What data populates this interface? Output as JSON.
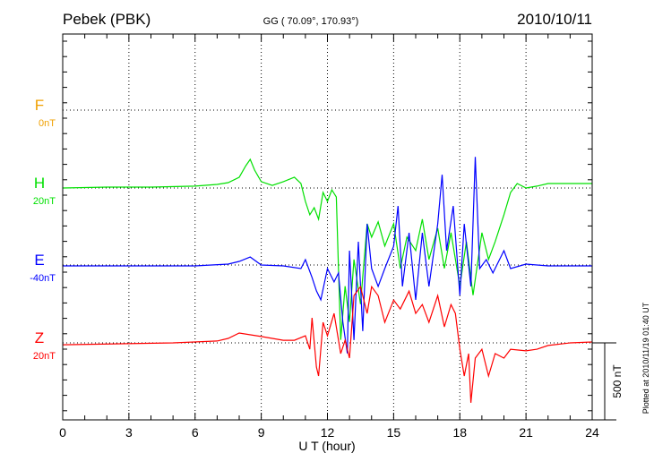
{
  "header": {
    "station": "Pebek (PBK)",
    "coords": "GG ( 70.09°, 170.93°)",
    "date": "2010/10/11"
  },
  "footer_note": "Plotted at 2010/11/19 01:40 UT",
  "chart_data": {
    "type": "line",
    "xlabel": "U T (hour)",
    "xlim": [
      0,
      24
    ],
    "xticks": [
      "0",
      "3",
      "6",
      "9",
      "12",
      "15",
      "18",
      "21",
      "24"
    ],
    "scale_bar": {
      "label": "500 nT",
      "value": 500
    },
    "grid": true,
    "series": [
      {
        "name": "F",
        "offset_label": "0nT",
        "color": "#f0a000",
        "points": []
      },
      {
        "name": "H",
        "offset_label": "20nT",
        "color": "#00e000",
        "points": [
          [
            0,
            0
          ],
          [
            2,
            6
          ],
          [
            4,
            6
          ],
          [
            6,
            12
          ],
          [
            7,
            23
          ],
          [
            7.5,
            35
          ],
          [
            8,
            70
          ],
          [
            8.3,
            145
          ],
          [
            8.5,
            186
          ],
          [
            8.7,
            116
          ],
          [
            9,
            41
          ],
          [
            9.5,
            17
          ],
          [
            10,
            41
          ],
          [
            10.5,
            70
          ],
          [
            10.8,
            29
          ],
          [
            11,
            -87
          ],
          [
            11.2,
            -174
          ],
          [
            11.4,
            -128
          ],
          [
            11.6,
            -203
          ],
          [
            11.8,
            -29
          ],
          [
            12,
            -87
          ],
          [
            12.2,
            -12
          ],
          [
            12.4,
            -58
          ],
          [
            12.5,
            -522
          ],
          [
            12.6,
            -986
          ],
          [
            12.8,
            -638
          ],
          [
            13,
            -870
          ],
          [
            13.2,
            -464
          ],
          [
            13.5,
            -754
          ],
          [
            13.8,
            -232
          ],
          [
            14,
            -319
          ],
          [
            14.3,
            -220
          ],
          [
            14.6,
            -377
          ],
          [
            15,
            -232
          ],
          [
            15.3,
            -522
          ],
          [
            15.6,
            -319
          ],
          [
            16,
            -406
          ],
          [
            16.3,
            -203
          ],
          [
            16.6,
            -464
          ],
          [
            17,
            -261
          ],
          [
            17.3,
            -522
          ],
          [
            17.6,
            -290
          ],
          [
            18,
            -638
          ],
          [
            18.3,
            -348
          ],
          [
            18.6,
            -696
          ],
          [
            19,
            -290
          ],
          [
            19.3,
            -464
          ],
          [
            19.6,
            -348
          ],
          [
            20,
            -174
          ],
          [
            20.3,
            -29
          ],
          [
            20.6,
            29
          ],
          [
            21,
            0
          ],
          [
            21.5,
            12
          ],
          [
            22,
            29
          ],
          [
            23,
            29
          ],
          [
            24,
            29
          ]
        ]
      },
      {
        "name": "E",
        "offset_label": "-40nT",
        "color": "#0000ff",
        "points": [
          [
            0,
            -6
          ],
          [
            6,
            -6
          ],
          [
            7.5,
            6
          ],
          [
            8,
            23
          ],
          [
            8.5,
            52
          ],
          [
            9,
            0
          ],
          [
            10,
            -6
          ],
          [
            10.8,
            -23
          ],
          [
            11,
            35
          ],
          [
            11.3,
            -81
          ],
          [
            11.5,
            -168
          ],
          [
            11.7,
            -226
          ],
          [
            12,
            -23
          ],
          [
            12.3,
            -110
          ],
          [
            12.5,
            -52
          ],
          [
            12.7,
            -371
          ],
          [
            12.9,
            -574
          ],
          [
            13,
            93
          ],
          [
            13.2,
            -487
          ],
          [
            13.4,
            151
          ],
          [
            13.6,
            -429
          ],
          [
            13.8,
            267
          ],
          [
            14,
            -23
          ],
          [
            14.3,
            -139
          ],
          [
            14.6,
            -23
          ],
          [
            15,
            122
          ],
          [
            15.2,
            383
          ],
          [
            15.4,
            -139
          ],
          [
            15.7,
            209
          ],
          [
            16,
            -226
          ],
          [
            16.3,
            209
          ],
          [
            16.6,
            -139
          ],
          [
            17,
            267
          ],
          [
            17.2,
            586
          ],
          [
            17.4,
            93
          ],
          [
            17.7,
            383
          ],
          [
            18,
            -197
          ],
          [
            18.2,
            267
          ],
          [
            18.5,
            -139
          ],
          [
            18.7,
            702
          ],
          [
            18.9,
            -23
          ],
          [
            19.2,
            35
          ],
          [
            19.5,
            -52
          ],
          [
            20,
            93
          ],
          [
            20.3,
            -23
          ],
          [
            21,
            6
          ],
          [
            22,
            -6
          ],
          [
            24,
            -6
          ]
        ]
      },
      {
        "name": "Z",
        "offset_label": "20nT",
        "color": "#ff0000",
        "points": [
          [
            0,
            -12
          ],
          [
            5,
            0
          ],
          [
            7,
            12
          ],
          [
            7.5,
            29
          ],
          [
            8,
            64
          ],
          [
            9,
            41
          ],
          [
            10,
            17
          ],
          [
            10.5,
            17
          ],
          [
            11,
            46
          ],
          [
            11.2,
            -41
          ],
          [
            11.3,
            162
          ],
          [
            11.5,
            -157
          ],
          [
            11.6,
            -215
          ],
          [
            11.8,
            133
          ],
          [
            12,
            46
          ],
          [
            12.3,
            191
          ],
          [
            12.6,
            -70
          ],
          [
            12.8,
            17
          ],
          [
            13,
            -99
          ],
          [
            13.2,
            307
          ],
          [
            13.5,
            365
          ],
          [
            13.8,
            191
          ],
          [
            14,
            365
          ],
          [
            14.3,
            307
          ],
          [
            14.6,
            133
          ],
          [
            15,
            278
          ],
          [
            15.3,
            220
          ],
          [
            15.7,
            336
          ],
          [
            16,
            191
          ],
          [
            16.3,
            249
          ],
          [
            16.6,
            133
          ],
          [
            17,
            307
          ],
          [
            17.3,
            104
          ],
          [
            17.6,
            249
          ],
          [
            17.8,
            191
          ],
          [
            18,
            -41
          ],
          [
            18.2,
            -215
          ],
          [
            18.4,
            -70
          ],
          [
            18.5,
            -389
          ],
          [
            18.7,
            -99
          ],
          [
            19,
            -41
          ],
          [
            19.3,
            -215
          ],
          [
            19.6,
            -70
          ],
          [
            20,
            -99
          ],
          [
            20.3,
            -41
          ],
          [
            21,
            -52
          ],
          [
            21.5,
            -41
          ],
          [
            22,
            -17
          ],
          [
            23,
            0
          ],
          [
            24,
            6
          ]
        ]
      }
    ]
  }
}
